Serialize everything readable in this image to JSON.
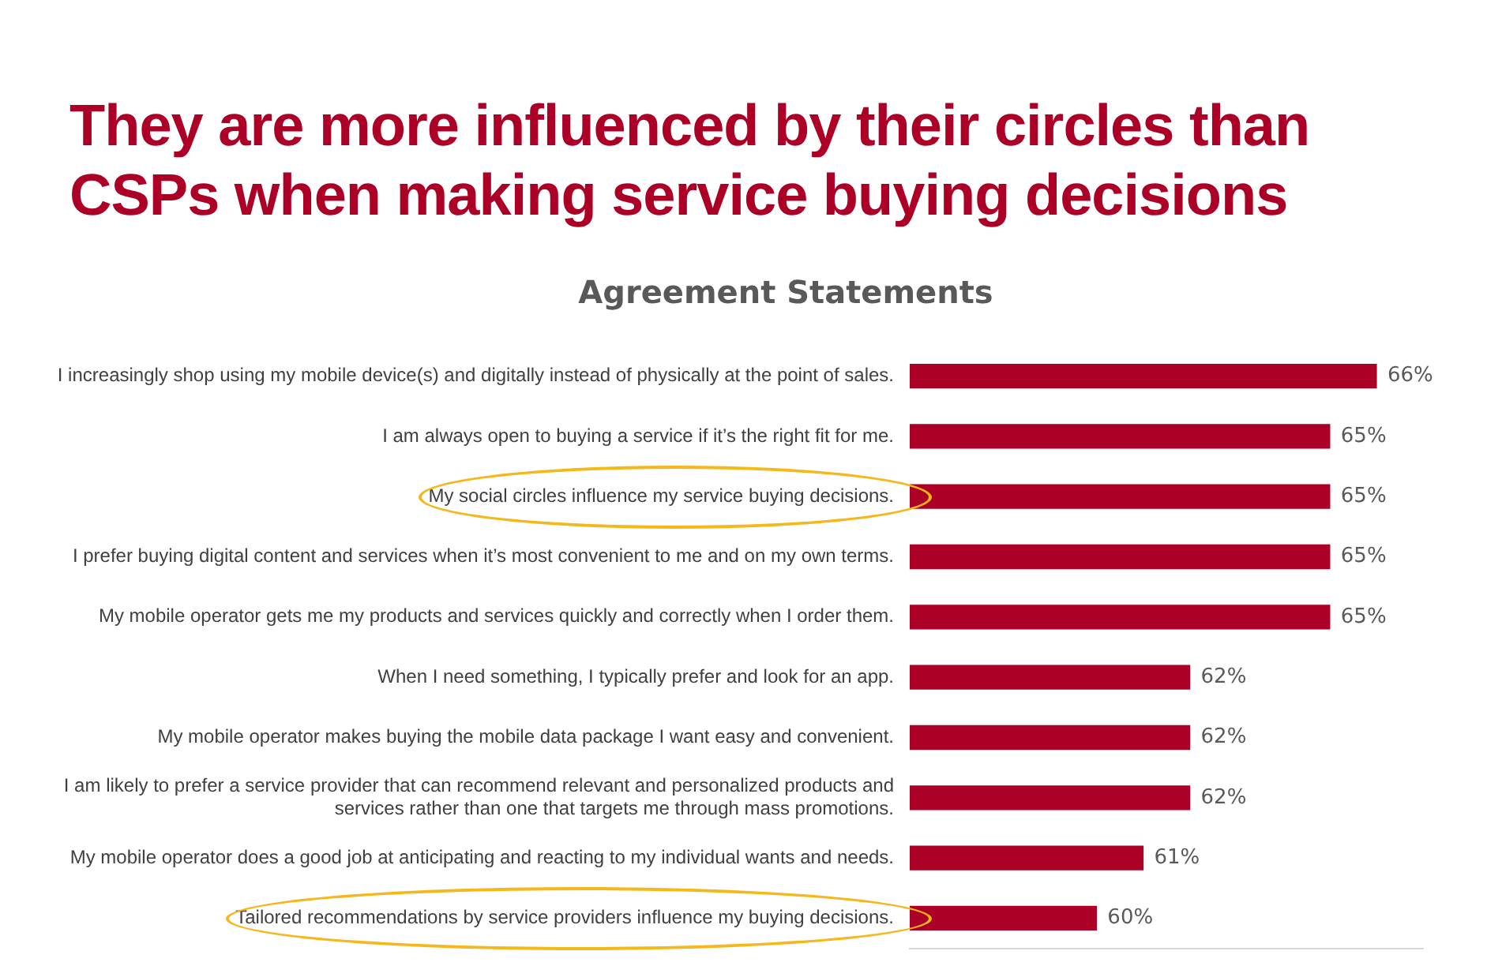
{
  "chart_data": {
    "type": "bar",
    "orientation": "horizontal",
    "title": "They are more influenced by their circles than CSPs when making service buying decisions",
    "subtitle": "Agreement Statements",
    "categories": [
      "I increasingly shop using my mobile device(s) and digitally instead of physically at the point of sales.",
      "I am always open to buying a service if it’s the right fit for me.",
      "My social circles influence my service buying decisions.",
      "I prefer buying digital content and services when it’s most convenient to me and on my own terms.",
      "My mobile operator gets me my products and services quickly and correctly when I order them.",
      "When I need something, I typically prefer and look for an app.",
      "My mobile operator makes buying the mobile data package I want easy and convenient.",
      "I am likely to prefer a service provider that can recommend relevant and personalized products and services rather than one that targets me through mass promotions.",
      "My mobile operator does a good job at anticipating and reacting to my individual wants and needs.",
      "Tailored recommendations by service providers influence my buying decisions."
    ],
    "values": [
      66,
      65,
      65,
      65,
      65,
      62,
      62,
      62,
      61,
      60
    ],
    "color": "#ad0026",
    "xlim": [
      56,
      67
    ],
    "tick_labels": "y",
    "value_labels": [
      "66%",
      "65%",
      "65%",
      "65%",
      "65%",
      "62%",
      "62%",
      "62%",
      "61%",
      "60%"
    ],
    "legend": false
  }
}
